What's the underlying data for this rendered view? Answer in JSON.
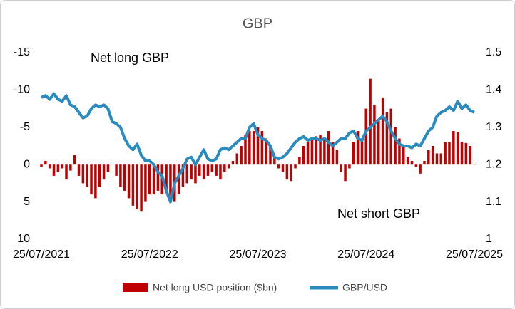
{
  "chart_data": {
    "type": "combo",
    "title": "GBP",
    "annotations": [
      "Net long GBP",
      "Net short GBP"
    ],
    "categories": [
      "25/07/2021",
      null,
      null,
      null,
      null,
      null,
      null,
      null,
      null,
      null,
      null,
      null,
      null,
      null,
      null,
      null,
      null,
      null,
      null,
      null,
      null,
      null,
      null,
      null,
      null,
      null,
      "25/07/2022",
      null,
      null,
      null,
      null,
      null,
      null,
      null,
      null,
      null,
      null,
      null,
      null,
      null,
      null,
      null,
      null,
      null,
      null,
      null,
      null,
      null,
      null,
      null,
      null,
      null,
      "25/07/2023",
      null,
      null,
      null,
      null,
      null,
      null,
      null,
      null,
      null,
      null,
      null,
      null,
      null,
      null,
      null,
      null,
      null,
      null,
      null,
      null,
      null,
      null,
      null,
      null,
      null,
      "25/07/2024",
      null,
      null,
      null,
      null,
      null,
      null,
      null,
      null,
      null,
      null,
      null,
      null,
      null,
      null,
      null,
      null,
      null,
      null,
      null,
      null,
      null,
      null,
      null,
      null,
      null,
      "25/07/2025"
    ],
    "series": [
      {
        "name": "Net long USD position ($bn)",
        "type": "bar",
        "color": "#c00000",
        "values": [
          0.3,
          -0.5,
          0.5,
          1.5,
          1.0,
          0.5,
          2.0,
          0.8,
          -1.3,
          1.5,
          2.5,
          3.0,
          4.0,
          4.5,
          3.0,
          2.0,
          1.0,
          0,
          1.5,
          3.0,
          3.5,
          4.5,
          5.5,
          6.0,
          6.3,
          5.0,
          4.0,
          4.0,
          3.5,
          4.0,
          3.5,
          4.5,
          5.0,
          4.0,
          3.0,
          2.5,
          2.0,
          2.5,
          1.5,
          2.0,
          1.5,
          1.0,
          1.5,
          2.0,
          1.0,
          0.5,
          -0.5,
          -1.5,
          -2.5,
          -4.0,
          -4.5,
          -4.5,
          -5.0,
          -4.5,
          -3.5,
          -2.5,
          -1.0,
          0.5,
          1.0,
          2.0,
          2.2,
          0.5,
          -1.0,
          -2.5,
          -3.0,
          -3.5,
          -3.8,
          -4.0,
          -3.5,
          -4.5,
          -3.0,
          -2.0,
          1.0,
          2.2,
          0.5,
          -3.0,
          -4.5,
          -3.5,
          -7.5,
          -11.5,
          -8.0,
          -6.0,
          -9.0,
          -7.0,
          -7.5,
          -5.0,
          -3.5,
          -2.5,
          -1.0,
          -0.5,
          0.3,
          1.2,
          -0.5,
          -2.0,
          -2.5,
          -1.5,
          -1.5,
          -3.0,
          -3.0,
          -4.5,
          -4.4,
          -3.0,
          -2.9,
          -2.5,
          -0.1
        ]
      },
      {
        "name": "GBP/USD",
        "type": "line",
        "axis": "y2",
        "color": "#2a8bbf",
        "values": [
          1.38,
          1.385,
          1.375,
          1.39,
          1.375,
          1.37,
          1.385,
          1.36,
          1.355,
          1.34,
          1.325,
          1.33,
          1.35,
          1.36,
          1.355,
          1.36,
          1.35,
          1.315,
          1.31,
          1.3,
          1.27,
          1.25,
          1.24,
          1.255,
          1.225,
          1.21,
          1.21,
          1.2,
          1.18,
          1.17,
          1.13,
          1.1,
          1.15,
          1.17,
          1.19,
          1.215,
          1.22,
          1.2,
          1.22,
          1.24,
          1.215,
          1.21,
          1.215,
          1.24,
          1.245,
          1.24,
          1.25,
          1.26,
          1.27,
          1.27,
          1.3,
          1.31,
          1.28,
          1.27,
          1.265,
          1.25,
          1.22,
          1.215,
          1.22,
          1.23,
          1.245,
          1.26,
          1.27,
          1.275,
          1.265,
          1.27,
          1.27,
          1.265,
          1.27,
          1.26,
          1.25,
          1.26,
          1.27,
          1.27,
          1.285,
          1.29,
          1.27,
          1.265,
          1.29,
          1.3,
          1.31,
          1.32,
          1.33,
          1.315,
          1.29,
          1.27,
          1.255,
          1.25,
          1.25,
          1.245,
          1.255,
          1.25,
          1.27,
          1.29,
          1.3,
          1.33,
          1.34,
          1.345,
          1.355,
          1.345,
          1.37,
          1.35,
          1.36,
          1.345,
          1.34
        ]
      }
    ],
    "ylim": [
      10,
      -15
    ],
    "yticks": [
      -15,
      -10,
      -5,
      0,
      5,
      10
    ],
    "y2lim": [
      1,
      1.5
    ],
    "y2ticks": [
      1,
      1.1,
      1.2,
      1.3,
      1.4,
      1.5
    ]
  }
}
